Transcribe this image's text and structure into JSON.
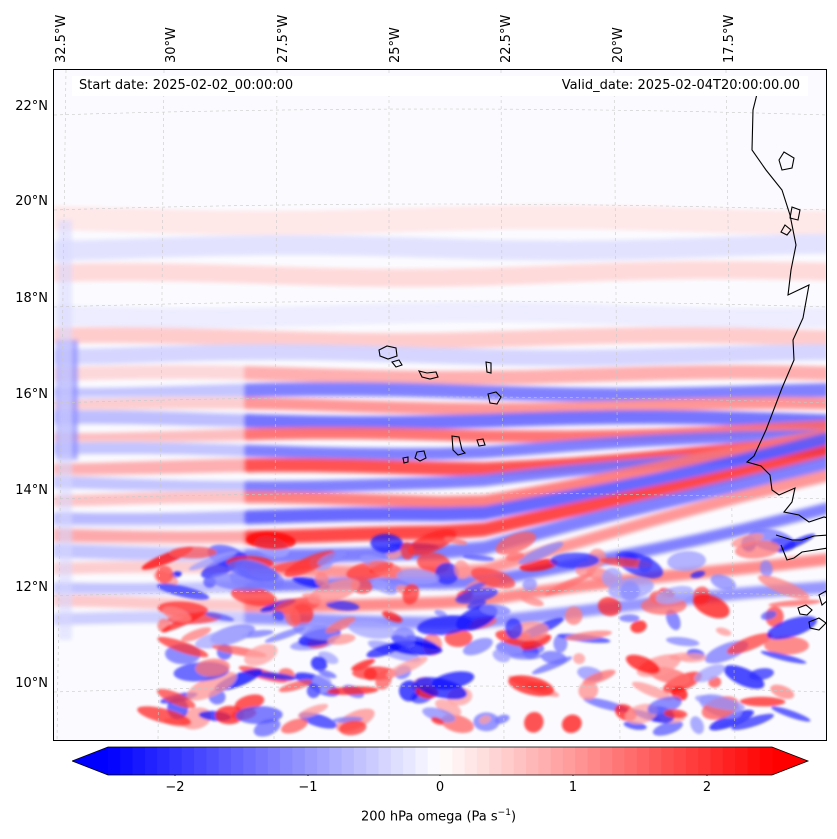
{
  "map": {
    "projection_note": "",
    "field": "200 hPa omega",
    "start_date_text": "Start date: 2025-02-02_00:00:00",
    "valid_date_text": "Valid_date: 2025-02-04T20:00:00.00",
    "longitude_labels": [
      "32.5°W",
      "30°W",
      "27.5°W",
      "25°W",
      "22.5°W",
      "20°W",
      "17.5°W"
    ],
    "latitude_labels": [
      "22°N",
      "20°N",
      "18°N",
      "16°N",
      "14°N",
      "12°N",
      "10°N"
    ],
    "colors": {
      "negative": "#0000ff",
      "zero": "#ffffff",
      "positive": "#ff0000",
      "coast": "#000000"
    }
  },
  "colorbar": {
    "ticks": [
      "−2",
      "−1",
      "0",
      "1",
      "2"
    ],
    "range": [
      -2.7,
      2.7
    ],
    "extend": "both",
    "label_main": "200 hPa omega (Pa s",
    "label_sup": "−1",
    "label_end": ")",
    "colormap": "bwr"
  }
}
